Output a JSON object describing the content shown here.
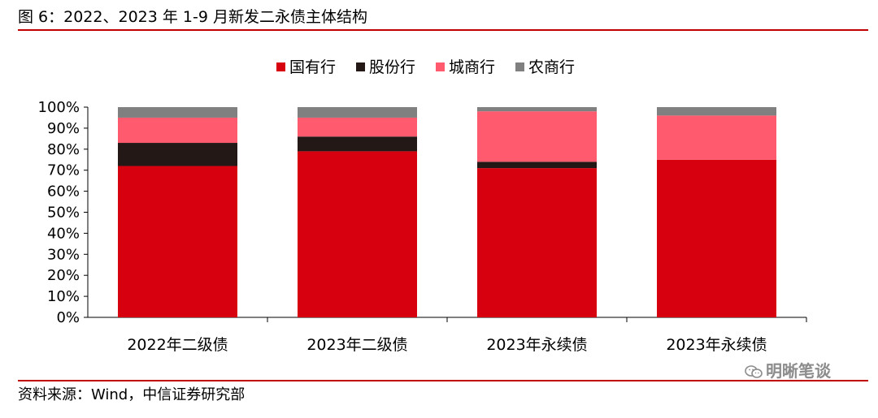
{
  "header": {
    "title": "图 6：2022、2023 年 1-9 月新发二永债主体结构"
  },
  "footer": {
    "source": "资料来源：Wind，中信证券研究部",
    "watermark": "明晰笔谈"
  },
  "colors": {
    "国有行": "#d7000f",
    "股份行": "#231815",
    "城商行": "#ff5a6e",
    "农商行": "#808080",
    "rule": "#c00000"
  },
  "chart_data": {
    "type": "bar",
    "stacked": true,
    "categories": [
      "2022年二级债",
      "2023年二级债",
      "2023年永续债",
      "2023年永续债"
    ],
    "series": [
      {
        "name": "国有行",
        "values": [
          72,
          79,
          71,
          75
        ]
      },
      {
        "name": "股份行",
        "values": [
          11,
          7,
          3,
          0
        ]
      },
      {
        "name": "城商行",
        "values": [
          12,
          9,
          24,
          21
        ]
      },
      {
        "name": "农商行",
        "values": [
          5,
          5,
          2,
          4
        ]
      }
    ],
    "ylim": [
      0,
      100
    ],
    "yticks": [
      "0%",
      "10%",
      "20%",
      "30%",
      "40%",
      "50%",
      "60%",
      "70%",
      "80%",
      "90%",
      "100%"
    ],
    "legend_position": "top-center",
    "grid": false
  }
}
